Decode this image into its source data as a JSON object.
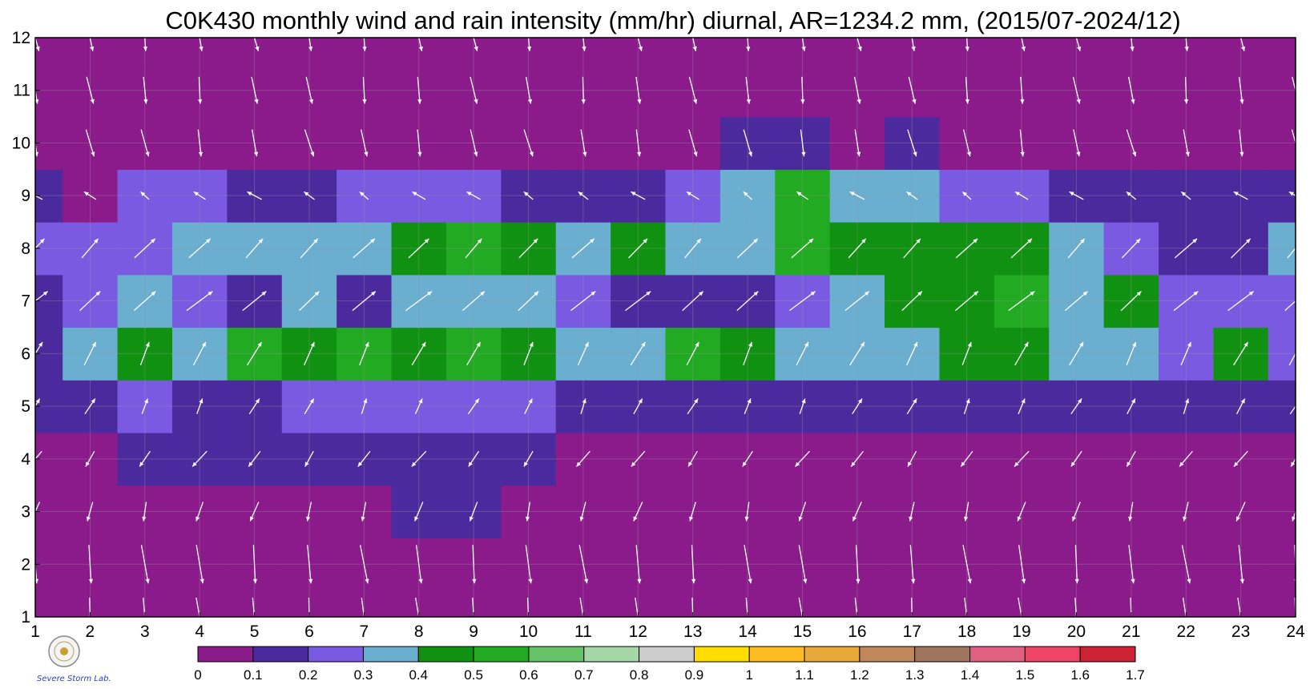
{
  "chart_data": {
    "type": "heatmap",
    "title": "C0K430 monthly wind and rain intensity (mm/hr) diurnal, AR=1234.2 mm, (2015/07-2024/12)",
    "xlabel": "",
    "ylabel": "",
    "xlim": [
      1,
      24
    ],
    "ylim": [
      1,
      12
    ],
    "x_ticks": [
      "1",
      "2",
      "3",
      "4",
      "5",
      "6",
      "7",
      "8",
      "9",
      "10",
      "11",
      "12",
      "13",
      "14",
      "15",
      "16",
      "17",
      "18",
      "19",
      "20",
      "21",
      "22",
      "23",
      "24"
    ],
    "y_ticks": [
      "1",
      "2",
      "3",
      "4",
      "5",
      "6",
      "7",
      "8",
      "9",
      "10",
      "11",
      "12"
    ],
    "grid": true,
    "colorbar": {
      "placement": "bottom",
      "levels": [
        "0",
        "0.1",
        "0.2",
        "0.3",
        "0.4",
        "0.5",
        "0.6",
        "0.7",
        "0.8",
        "0.9",
        "1",
        "1.1",
        "1.2",
        "1.3",
        "1.4",
        "1.5",
        "1.6",
        "1.7"
      ],
      "colors": [
        "#8b1a8b",
        "#4b2a9e",
        "#7a5ae0",
        "#6aaed0",
        "#119111",
        "#22aa22",
        "#66c266",
        "#a5d6a5",
        "#cccccc",
        "#ffdd00",
        "#ffbb22",
        "#e8a83a",
        "#c0875a",
        "#a07560",
        "#e06080",
        "#ee4466",
        "#cc2233"
      ]
    },
    "rain_intensity_grid": [
      [
        0.05,
        0.05,
        0.05,
        0.05,
        0.05,
        0.05,
        0.05,
        0.05,
        0.05,
        0.05,
        0.05,
        0.05,
        0.05,
        0.05,
        0.05,
        0.05,
        0.05,
        0.05,
        0.05,
        0.05,
        0.05,
        0.05,
        0.05,
        0.05
      ],
      [
        0.05,
        0.05,
        0.05,
        0.05,
        0.05,
        0.05,
        0.05,
        0.05,
        0.05,
        0.05,
        0.05,
        0.05,
        0.05,
        0.05,
        0.05,
        0.05,
        0.05,
        0.05,
        0.05,
        0.05,
        0.05,
        0.05,
        0.05,
        0.05
      ],
      [
        0.05,
        0.05,
        0.05,
        0.05,
        0.05,
        0.05,
        0.05,
        0.12,
        0.11,
        0.05,
        0.05,
        0.05,
        0.05,
        0.05,
        0.05,
        0.05,
        0.05,
        0.05,
        0.05,
        0.05,
        0.05,
        0.05,
        0.05,
        0.05
      ],
      [
        0.05,
        0.05,
        0.12,
        0.15,
        0.15,
        0.18,
        0.13,
        0.15,
        0.16,
        0.16,
        0.08,
        0.06,
        0.07,
        0.08,
        0.05,
        0.07,
        0.07,
        0.05,
        0.08,
        0.06,
        0.05,
        0.06,
        0.08,
        0.09
      ],
      [
        0.12,
        0.15,
        0.2,
        0.17,
        0.17,
        0.22,
        0.25,
        0.27,
        0.26,
        0.21,
        0.13,
        0.12,
        0.15,
        0.19,
        0.19,
        0.15,
        0.16,
        0.18,
        0.17,
        0.12,
        0.11,
        0.12,
        0.14,
        0.15
      ],
      [
        0.15,
        0.35,
        0.48,
        0.32,
        0.56,
        0.45,
        0.52,
        0.45,
        0.53,
        0.42,
        0.3,
        0.3,
        0.56,
        0.45,
        0.3,
        0.32,
        0.32,
        0.41,
        0.42,
        0.3,
        0.34,
        0.27,
        0.46,
        0.25
      ],
      [
        0.15,
        0.28,
        0.3,
        0.29,
        0.19,
        0.3,
        0.19,
        0.35,
        0.32,
        0.3,
        0.24,
        0.18,
        0.15,
        0.17,
        0.29,
        0.31,
        0.4,
        0.43,
        0.52,
        0.32,
        0.4,
        0.25,
        0.25,
        0.2
      ],
      [
        0.22,
        0.25,
        0.27,
        0.3,
        0.3,
        0.32,
        0.34,
        0.42,
        0.56,
        0.44,
        0.35,
        0.45,
        0.35,
        0.34,
        0.55,
        0.41,
        0.42,
        0.4,
        0.4,
        0.3,
        0.2,
        0.16,
        0.16,
        0.34
      ],
      [
        0.1,
        0.09,
        0.2,
        0.21,
        0.18,
        0.17,
        0.2,
        0.21,
        0.22,
        0.19,
        0.18,
        0.18,
        0.29,
        0.38,
        0.51,
        0.3,
        0.39,
        0.29,
        0.25,
        0.15,
        0.13,
        0.12,
        0.12,
        0.12
      ],
      [
        0.05,
        0.05,
        0.05,
        0.07,
        0.05,
        0.05,
        0.05,
        0.05,
        0.05,
        0.05,
        0.05,
        0.05,
        0.08,
        0.11,
        0.12,
        0.09,
        0.11,
        0.06,
        0.06,
        0.05,
        0.05,
        0.05,
        0.05,
        0.05
      ],
      [
        0.05,
        0.05,
        0.05,
        0.05,
        0.05,
        0.05,
        0.05,
        0.05,
        0.05,
        0.05,
        0.05,
        0.05,
        0.05,
        0.05,
        0.05,
        0.05,
        0.05,
        0.05,
        0.05,
        0.05,
        0.05,
        0.05,
        0.05,
        0.05
      ],
      [
        0.05,
        0.05,
        0.05,
        0.05,
        0.05,
        0.05,
        0.05,
        0.05,
        0.05,
        0.05,
        0.05,
        0.05,
        0.05,
        0.05,
        0.05,
        0.05,
        0.05,
        0.05,
        0.05,
        0.05,
        0.05,
        0.05,
        0.05,
        0.05
      ]
    ],
    "wind_rows": [
      {
        "month": 1,
        "u": 0.1,
        "v": -1.0
      },
      {
        "month": 2,
        "u": 0.12,
        "v": -1.0
      },
      {
        "month": 3,
        "u": -0.15,
        "v": -0.5
      },
      {
        "month": 4,
        "u": -0.3,
        "v": -0.4
      },
      {
        "month": 5,
        "u": 0.2,
        "v": 0.4
      },
      {
        "month": 6,
        "u": 0.3,
        "v": 0.6
      },
      {
        "month": 7,
        "u": 0.6,
        "v": 0.5
      },
      {
        "month": 8,
        "u": 0.5,
        "v": 0.5
      },
      {
        "month": 9,
        "u": -0.3,
        "v": 0.2
      },
      {
        "month": 10,
        "u": 0.15,
        "v": -0.7
      },
      {
        "month": 11,
        "u": 0.1,
        "v": -0.7
      },
      {
        "month": 12,
        "u": 0.12,
        "v": -0.7
      }
    ]
  },
  "logo": {
    "text": "Severe Storm Lab."
  }
}
